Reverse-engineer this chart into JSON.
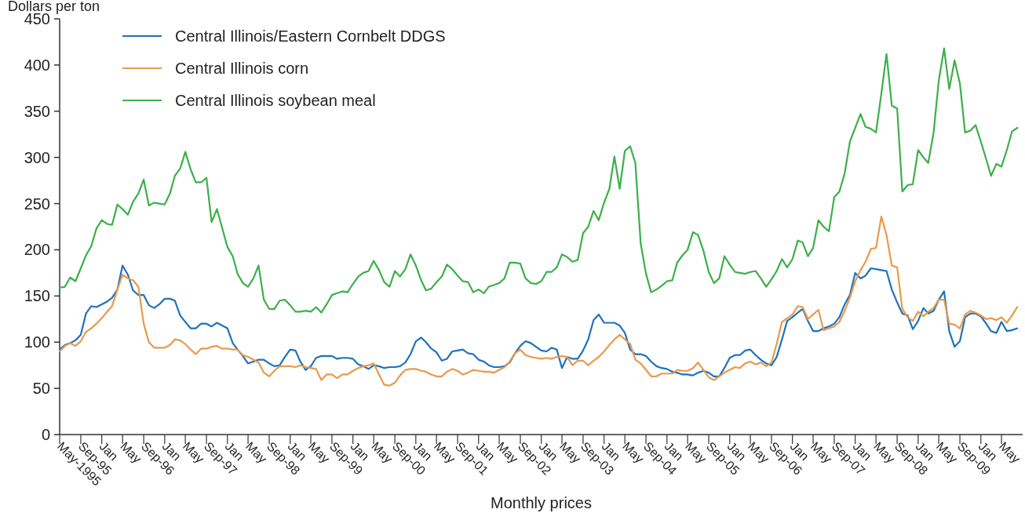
{
  "chart_data": {
    "type": "line",
    "ylabel": "Dollars per ton",
    "xlabel": "Monthly prices",
    "ylim": [
      0,
      450
    ],
    "yticks": [
      0,
      50,
      100,
      150,
      200,
      250,
      300,
      350,
      400,
      450
    ],
    "xlim": [
      "1995-05",
      "2010-09"
    ],
    "xticks": [
      {
        "value": "1995-05",
        "label": "May-1995"
      },
      {
        "value": "1995-09",
        "label": "Sep-95"
      },
      {
        "value": "1996-01",
        "label": "Jan"
      },
      {
        "value": "1996-05",
        "label": "May"
      },
      {
        "value": "1996-09",
        "label": "Sep-96"
      },
      {
        "value": "1997-01",
        "label": "Jan"
      },
      {
        "value": "1997-05",
        "label": "May"
      },
      {
        "value": "1997-09",
        "label": "Sep-97"
      },
      {
        "value": "1998-01",
        "label": "Jan"
      },
      {
        "value": "1998-05",
        "label": "May"
      },
      {
        "value": "1998-09",
        "label": "Sep-98"
      },
      {
        "value": "1999-01",
        "label": "Jan"
      },
      {
        "value": "1999-05",
        "label": "May"
      },
      {
        "value": "1999-09",
        "label": "Sep-99"
      },
      {
        "value": "2000-01",
        "label": "Jan"
      },
      {
        "value": "2000-05",
        "label": "May"
      },
      {
        "value": "2000-09",
        "label": "Sep-00"
      },
      {
        "value": "2001-01",
        "label": "Jan"
      },
      {
        "value": "2001-05",
        "label": "May"
      },
      {
        "value": "2001-09",
        "label": "Sep-01"
      },
      {
        "value": "2002-01",
        "label": "Jan"
      },
      {
        "value": "2002-05",
        "label": "May"
      },
      {
        "value": "2002-09",
        "label": "Sep-02"
      },
      {
        "value": "2003-01",
        "label": "Jan"
      },
      {
        "value": "2003-05",
        "label": "May"
      },
      {
        "value": "2003-09",
        "label": "Sep-03"
      },
      {
        "value": "2004-01",
        "label": "Jan"
      },
      {
        "value": "2004-05",
        "label": "May"
      },
      {
        "value": "2004-09",
        "label": "Sep-04"
      },
      {
        "value": "2005-01",
        "label": "Jan"
      },
      {
        "value": "2005-05",
        "label": "May"
      },
      {
        "value": "2005-09",
        "label": "Sep-05"
      },
      {
        "value": "2006-01",
        "label": "Jan"
      },
      {
        "value": "2006-05",
        "label": "May"
      },
      {
        "value": "2006-09",
        "label": "Sep-06"
      },
      {
        "value": "2007-01",
        "label": "Jan"
      },
      {
        "value": "2007-05",
        "label": "May"
      },
      {
        "value": "2007-09",
        "label": "Sep-07"
      },
      {
        "value": "2008-01",
        "label": "Jan"
      },
      {
        "value": "2008-05",
        "label": "May"
      },
      {
        "value": "2008-09",
        "label": "Sep-08"
      },
      {
        "value": "2009-01",
        "label": "Jan"
      },
      {
        "value": "2009-05",
        "label": "May"
      },
      {
        "value": "2009-09",
        "label": "Sep-09"
      },
      {
        "value": "2010-01",
        "label": "Jan"
      },
      {
        "value": "2010-05",
        "label": "May"
      }
    ],
    "grid": false,
    "legend": "top left",
    "marker": "none",
    "line_style": "solid",
    "x": [
      "1995-05",
      "1995-06",
      "1995-07",
      "1995-08",
      "1995-09",
      "1995-10",
      "1995-11",
      "1995-12",
      "1996-01",
      "1996-02",
      "1996-03",
      "1996-04",
      "1996-05",
      "1996-06",
      "1996-07",
      "1996-08",
      "1996-09",
      "1996-10",
      "1996-11",
      "1996-12",
      "1997-01",
      "1997-02",
      "1997-03",
      "1997-04",
      "1997-05",
      "1997-06",
      "1997-07",
      "1997-08",
      "1997-09",
      "1997-10",
      "1997-11",
      "1997-12",
      "1998-01",
      "1998-02",
      "1998-03",
      "1998-04",
      "1998-05",
      "1998-06",
      "1998-07",
      "1998-08",
      "1998-09",
      "1998-10",
      "1998-11",
      "1998-12",
      "1999-01",
      "1999-02",
      "1999-03",
      "1999-04",
      "1999-05",
      "1999-06",
      "1999-07",
      "1999-08",
      "1999-09",
      "1999-10",
      "1999-11",
      "1999-12",
      "2000-01",
      "2000-02",
      "2000-03",
      "2000-04",
      "2000-05",
      "2000-06",
      "2000-07",
      "2000-08",
      "2000-09",
      "2000-10",
      "2000-11",
      "2000-12",
      "2001-01",
      "2001-02",
      "2001-03",
      "2001-04",
      "2001-05",
      "2001-06",
      "2001-07",
      "2001-08",
      "2001-09",
      "2001-10",
      "2001-11",
      "2001-12",
      "2002-01",
      "2002-02",
      "2002-03",
      "2002-04",
      "2002-05",
      "2002-06",
      "2002-07",
      "2002-08",
      "2002-09",
      "2002-10",
      "2002-11",
      "2002-12",
      "2003-01",
      "2003-02",
      "2003-03",
      "2003-04",
      "2003-05",
      "2003-06",
      "2003-07",
      "2003-08",
      "2003-09",
      "2003-10",
      "2003-11",
      "2003-12",
      "2004-01",
      "2004-02",
      "2004-03",
      "2004-04",
      "2004-05",
      "2004-06",
      "2004-07",
      "2004-08",
      "2004-09",
      "2004-10",
      "2004-11",
      "2004-12",
      "2005-01",
      "2005-02",
      "2005-03",
      "2005-04",
      "2005-05",
      "2005-06",
      "2005-07",
      "2005-08",
      "2005-09",
      "2005-10",
      "2005-11",
      "2005-12",
      "2006-01",
      "2006-02",
      "2006-03",
      "2006-04",
      "2006-05",
      "2006-06",
      "2006-07",
      "2006-08",
      "2006-09",
      "2006-10",
      "2006-11",
      "2006-12",
      "2007-01",
      "2007-02",
      "2007-03",
      "2007-04",
      "2007-05",
      "2007-06",
      "2007-07",
      "2007-08",
      "2007-09",
      "2007-10",
      "2007-11",
      "2007-12",
      "2008-01",
      "2008-02",
      "2008-03",
      "2008-04",
      "2008-05",
      "2008-06",
      "2008-07",
      "2008-08",
      "2008-09",
      "2008-10",
      "2008-11",
      "2008-12",
      "2009-01",
      "2009-02",
      "2009-03",
      "2009-04",
      "2009-05",
      "2009-06",
      "2009-07",
      "2009-08",
      "2009-09",
      "2009-10",
      "2009-11",
      "2009-12",
      "2010-01",
      "2010-02",
      "2010-03",
      "2010-04",
      "2010-05",
      "2010-06",
      "2010-07",
      "2010-08"
    ],
    "series": [
      {
        "name": "Central Illinois/Eastern Cornbelt DDGS",
        "color": "#1f72bd",
        "values": [
          92,
          97,
          99,
          102,
          108,
          131,
          139,
          138,
          141,
          144,
          148,
          157,
          183,
          173,
          156,
          151,
          151,
          140,
          137,
          141,
          147,
          147,
          145,
          129,
          122,
          115,
          115,
          120,
          120,
          117,
          121,
          118,
          115,
          99,
          92,
          85,
          77,
          79,
          81,
          81,
          77,
          74,
          75,
          84,
          92,
          91,
          79,
          70,
          74,
          83,
          85,
          85,
          85,
          82,
          83,
          83,
          82,
          76,
          74,
          71,
          75,
          74,
          72,
          73,
          73,
          74,
          78,
          87,
          101,
          105,
          100,
          93,
          89,
          80,
          82,
          90,
          91,
          92,
          88,
          87,
          81,
          79,
          75,
          73,
          73,
          74,
          78,
          88,
          96,
          101,
          99,
          95,
          91,
          90,
          94,
          92,
          72,
          84,
          82,
          82,
          91,
          103,
          124,
          130,
          121,
          121,
          121,
          118,
          110,
          92,
          87,
          87,
          85,
          79,
          74,
          72,
          71,
          68,
          67,
          65,
          65,
          64,
          67,
          69,
          67,
          63,
          63,
          72,
          83,
          86,
          86,
          91,
          92,
          86,
          81,
          77,
          75,
          84,
          103,
          123,
          127,
          132,
          136,
          123,
          112,
          112,
          115,
          117,
          120,
          127,
          141,
          151,
          175,
          169,
          172,
          180,
          179,
          178,
          177,
          157,
          143,
          131,
          129,
          114,
          123,
          137,
          131,
          134,
          146,
          155,
          112,
          95,
          101,
          127,
          131,
          131,
          128,
          120,
          112,
          110,
          122,
          112,
          113,
          115
        ]
      },
      {
        "name": "Central Illinois corn",
        "color": "#e89a4c",
        "values": [
          90,
          96,
          99,
          96,
          101,
          111,
          115,
          120,
          126,
          133,
          139,
          157,
          173,
          169,
          167,
          160,
          120,
          100,
          94,
          94,
          94,
          97,
          103,
          102,
          98,
          92,
          87,
          93,
          93,
          95,
          96,
          93,
          93,
          92,
          92,
          86,
          84,
          81,
          78,
          67,
          63,
          69,
          74,
          74,
          74,
          73,
          75,
          73,
          72,
          71,
          59,
          65,
          65,
          61,
          65,
          65,
          69,
          72,
          74,
          75,
          77,
          65,
          54,
          53,
          56,
          64,
          70,
          71,
          71,
          69,
          68,
          65,
          63,
          63,
          68,
          71,
          69,
          65,
          67,
          70,
          69,
          68,
          68,
          67,
          70,
          73,
          79,
          88,
          92,
          86,
          84,
          83,
          82,
          83,
          82,
          84,
          85,
          84,
          75,
          80,
          80,
          75,
          80,
          84,
          90,
          97,
          103,
          108,
          103,
          98,
          81,
          77,
          70,
          63,
          63,
          66,
          66,
          66,
          70,
          69,
          69,
          72,
          78,
          70,
          62,
          59,
          63,
          67,
          70,
          73,
          72,
          77,
          79,
          76,
          78,
          74,
          78,
          98,
          122,
          126,
          130,
          139,
          138,
          125,
          130,
          135,
          113,
          115,
          117,
          122,
          134,
          148,
          166,
          178,
          187,
          201,
          202,
          236,
          216,
          183,
          181,
          136,
          127,
          123,
          133,
          128,
          133,
          137,
          146,
          146,
          120,
          119,
          115,
          130,
          134,
          132,
          129,
          125,
          126,
          124,
          127,
          121,
          129,
          138
        ]
      },
      {
        "name": "Central Illinois soybean meal",
        "color": "#3bb04a",
        "values": [
          159,
          160,
          170,
          166,
          180,
          194,
          204,
          223,
          232,
          228,
          227,
          249,
          244,
          238,
          252,
          261,
          276,
          248,
          251,
          250,
          249,
          261,
          280,
          288,
          306,
          287,
          273,
          273,
          278,
          230,
          244,
          224,
          203,
          193,
          174,
          164,
          160,
          169,
          183,
          146,
          136,
          136,
          145,
          146,
          140,
          133,
          133,
          134,
          133,
          138,
          132,
          141,
          151,
          153,
          155,
          154,
          163,
          171,
          175,
          177,
          188,
          178,
          165,
          160,
          177,
          171,
          179,
          195,
          183,
          167,
          156,
          158,
          165,
          171,
          184,
          179,
          172,
          166,
          165,
          154,
          157,
          153,
          160,
          162,
          164,
          169,
          186,
          186,
          185,
          169,
          164,
          163,
          166,
          176,
          176,
          181,
          195,
          192,
          187,
          189,
          218,
          225,
          242,
          232,
          251,
          266,
          301,
          266,
          307,
          312,
          294,
          207,
          174,
          154,
          157,
          161,
          166,
          167,
          186,
          194,
          200,
          219,
          216,
          199,
          176,
          164,
          169,
          193,
          184,
          176,
          175,
          174,
          176,
          177,
          169,
          160,
          168,
          177,
          190,
          181,
          190,
          210,
          208,
          193,
          202,
          232,
          225,
          220,
          257,
          263,
          283,
          317,
          332,
          347,
          333,
          331,
          327,
          369,
          412,
          356,
          353,
          263,
          270,
          271,
          308,
          300,
          294,
          327,
          383,
          418,
          374,
          405,
          380,
          327,
          329,
          335,
          317,
          298,
          280,
          293,
          290,
          308,
          328,
          332
        ]
      }
    ]
  }
}
